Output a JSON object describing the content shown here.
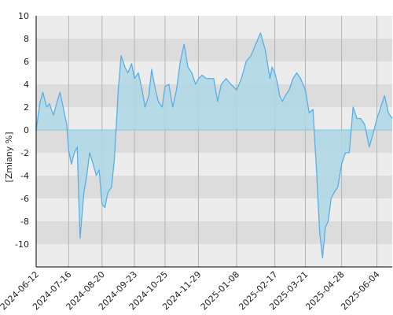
{
  "chart_data": {
    "type": "area",
    "ylabel": "[Zmiany %]",
    "ylim": [
      -12,
      10
    ],
    "yticks": [
      10,
      8,
      6,
      4,
      2,
      0,
      -2,
      -4,
      -6,
      -8,
      -10
    ],
    "ytick_labels": [
      "10",
      "8",
      "6",
      "4",
      "2",
      "0",
      "-2",
      "-4",
      "-6",
      "-8",
      "-10"
    ],
    "xlim": [
      "2024-06-12",
      "2025-06-20"
    ],
    "xticks": [
      "2024-06-12",
      "2024-07-16",
      "2024-08-20",
      "2024-09-23",
      "2024-10-25",
      "2024-11-29",
      "2025-01-08",
      "2025-02-17",
      "2025-03-21",
      "2025-04-28",
      "2025-06-04"
    ],
    "grid": true,
    "colors": {
      "line": "#5aaee8",
      "fill": "#add8e6",
      "band_dark": "#dcdcdc",
      "band_light": "#ececec",
      "vgrid": "#b4b4b4",
      "axis": "#000000",
      "zero_line": "#7fc9e8"
    },
    "series": [
      {
        "x": [
          "2024-06-12",
          "2024-06-16",
          "2024-06-19",
          "2024-06-23",
          "2024-06-26",
          "2024-06-30",
          "2024-07-03",
          "2024-07-07",
          "2024-07-10",
          "2024-07-14",
          "2024-07-16",
          "2024-07-19",
          "2024-07-22",
          "2024-07-25",
          "2024-07-28",
          "2024-08-01",
          "2024-08-04",
          "2024-08-07",
          "2024-08-10",
          "2024-08-14",
          "2024-08-17",
          "2024-08-20",
          "2024-08-23",
          "2024-08-26",
          "2024-08-30",
          "2024-09-02",
          "2024-09-06",
          "2024-09-09",
          "2024-09-13",
          "2024-09-16",
          "2024-09-20",
          "2024-09-23",
          "2024-09-27",
          "2024-10-01",
          "2024-10-04",
          "2024-10-08",
          "2024-10-11",
          "2024-10-15",
          "2024-10-18",
          "2024-10-22",
          "2024-10-25",
          "2024-10-29",
          "2024-11-02",
          "2024-11-06",
          "2024-11-10",
          "2024-11-14",
          "2024-11-18",
          "2024-11-22",
          "2024-11-26",
          "2024-11-29",
          "2024-12-03",
          "2024-12-07",
          "2024-12-11",
          "2024-12-15",
          "2024-12-19",
          "2024-12-23",
          "2024-12-28",
          "2025-01-02",
          "2025-01-08",
          "2025-01-13",
          "2025-01-18",
          "2025-01-23",
          "2025-01-28",
          "2025-02-02",
          "2025-02-07",
          "2025-02-12",
          "2025-02-14",
          "2025-02-17",
          "2025-02-20",
          "2025-02-22",
          "2025-02-25",
          "2025-02-28",
          "2025-03-04",
          "2025-03-08",
          "2025-03-12",
          "2025-03-16",
          "2025-03-21",
          "2025-03-25",
          "2025-03-29",
          "2025-04-02",
          "2025-04-05",
          "2025-04-08",
          "2025-04-11",
          "2025-04-14",
          "2025-04-17",
          "2025-04-20",
          "2025-04-24",
          "2025-04-28",
          "2025-05-02",
          "2025-05-06",
          "2025-05-10",
          "2025-05-14",
          "2025-05-18",
          "2025-05-22",
          "2025-05-27",
          "2025-06-01",
          "2025-06-04",
          "2025-06-08",
          "2025-06-12",
          "2025-06-16",
          "2025-06-20"
        ],
        "values": [
          0.0,
          2.4,
          3.3,
          2.0,
          2.3,
          1.3,
          2.2,
          3.3,
          2.1,
          0.5,
          -1.8,
          -3.0,
          -2.0,
          -1.5,
          -9.5,
          -5.5,
          -4.0,
          -2.0,
          -2.8,
          -4.0,
          -3.5,
          -6.5,
          -6.8,
          -5.5,
          -5.0,
          -2.5,
          3.5,
          6.5,
          5.5,
          5.0,
          5.8,
          4.5,
          5.0,
          3.5,
          2.0,
          3.0,
          5.3,
          3.5,
          2.5,
          2.0,
          3.8,
          4.0,
          2.0,
          3.5,
          6.0,
          7.5,
          5.5,
          5.0,
          4.0,
          4.5,
          4.8,
          4.5,
          4.5,
          4.5,
          2.5,
          4.0,
          4.5,
          4.0,
          3.5,
          4.5,
          6.0,
          6.5,
          7.5,
          8.5,
          7.0,
          4.5,
          5.5,
          5.0,
          4.0,
          3.0,
          2.5,
          3.0,
          3.5,
          4.5,
          5.0,
          4.5,
          3.5,
          1.5,
          1.8,
          -4.0,
          -9.0,
          -11.2,
          -8.5,
          -8.0,
          -6.0,
          -5.5,
          -5.0,
          -3.0,
          -2.0,
          -2.0,
          2.0,
          1.0,
          1.0,
          0.5,
          -1.5,
          0.0,
          1.0,
          2.0,
          3.0,
          1.5,
          1.0
        ]
      }
    ]
  }
}
